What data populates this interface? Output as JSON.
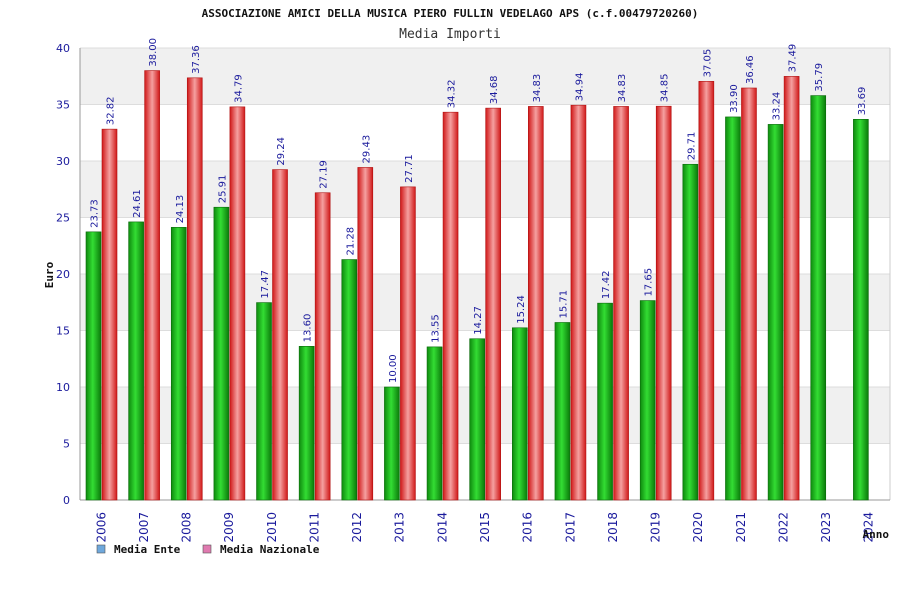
{
  "chart_data": {
    "type": "bar",
    "title": "ASSOCIAZIONE AMICI DELLA MUSICA PIERO FULLIN VEDELAGO APS (c.f.00479720260)",
    "subtitle": "Media Importi",
    "xlabel": "Anno",
    "ylabel": "Euro",
    "ylim": [
      0,
      40
    ],
    "yticks": [
      "0",
      "5",
      "10",
      "15",
      "20",
      "25",
      "30",
      "35",
      "40"
    ],
    "grid": true,
    "legend_position": "bottom-left",
    "categories": [
      "2006",
      "2007",
      "2008",
      "2009",
      "2010",
      "2011",
      "2012",
      "2013",
      "2014",
      "2015",
      "2016",
      "2017",
      "2018",
      "2019",
      "2020",
      "2021",
      "2022",
      "2023",
      "2024"
    ],
    "series": [
      {
        "name": "Media Ente",
        "color": "#22bb22",
        "legend_color": "#6fa8dc",
        "values": [
          23.73,
          24.61,
          24.13,
          25.91,
          17.47,
          13.6,
          21.28,
          10.0,
          13.55,
          14.27,
          15.24,
          15.71,
          17.42,
          17.65,
          29.71,
          33.9,
          33.24,
          35.79,
          33.69
        ],
        "labels": [
          "23.73",
          "24.61",
          "24.13",
          "25.91",
          "17.47",
          "13.60",
          "21.28",
          "10.00",
          "13.55",
          "14.27",
          "15.24",
          "15.71",
          "17.42",
          "17.65",
          "29.71",
          "33.90",
          "33.24",
          "35.79",
          "33.69"
        ]
      },
      {
        "name": "Media Nazionale",
        "color": "#ee3333",
        "legend_color": "#e07ab0",
        "values": [
          32.82,
          38.0,
          37.36,
          34.79,
          29.24,
          27.19,
          29.43,
          27.71,
          34.32,
          34.68,
          34.83,
          34.94,
          34.83,
          34.85,
          37.05,
          36.46,
          37.49,
          null,
          null
        ],
        "labels": [
          "32.82",
          "38.00",
          "37.36",
          "34.79",
          "29.24",
          "27.19",
          "29.43",
          "27.71",
          "34.32",
          "34.68",
          "34.83",
          "34.94",
          "34.83",
          "34.85",
          "37.05",
          "36.46",
          "37.49",
          "",
          ""
        ]
      }
    ]
  }
}
